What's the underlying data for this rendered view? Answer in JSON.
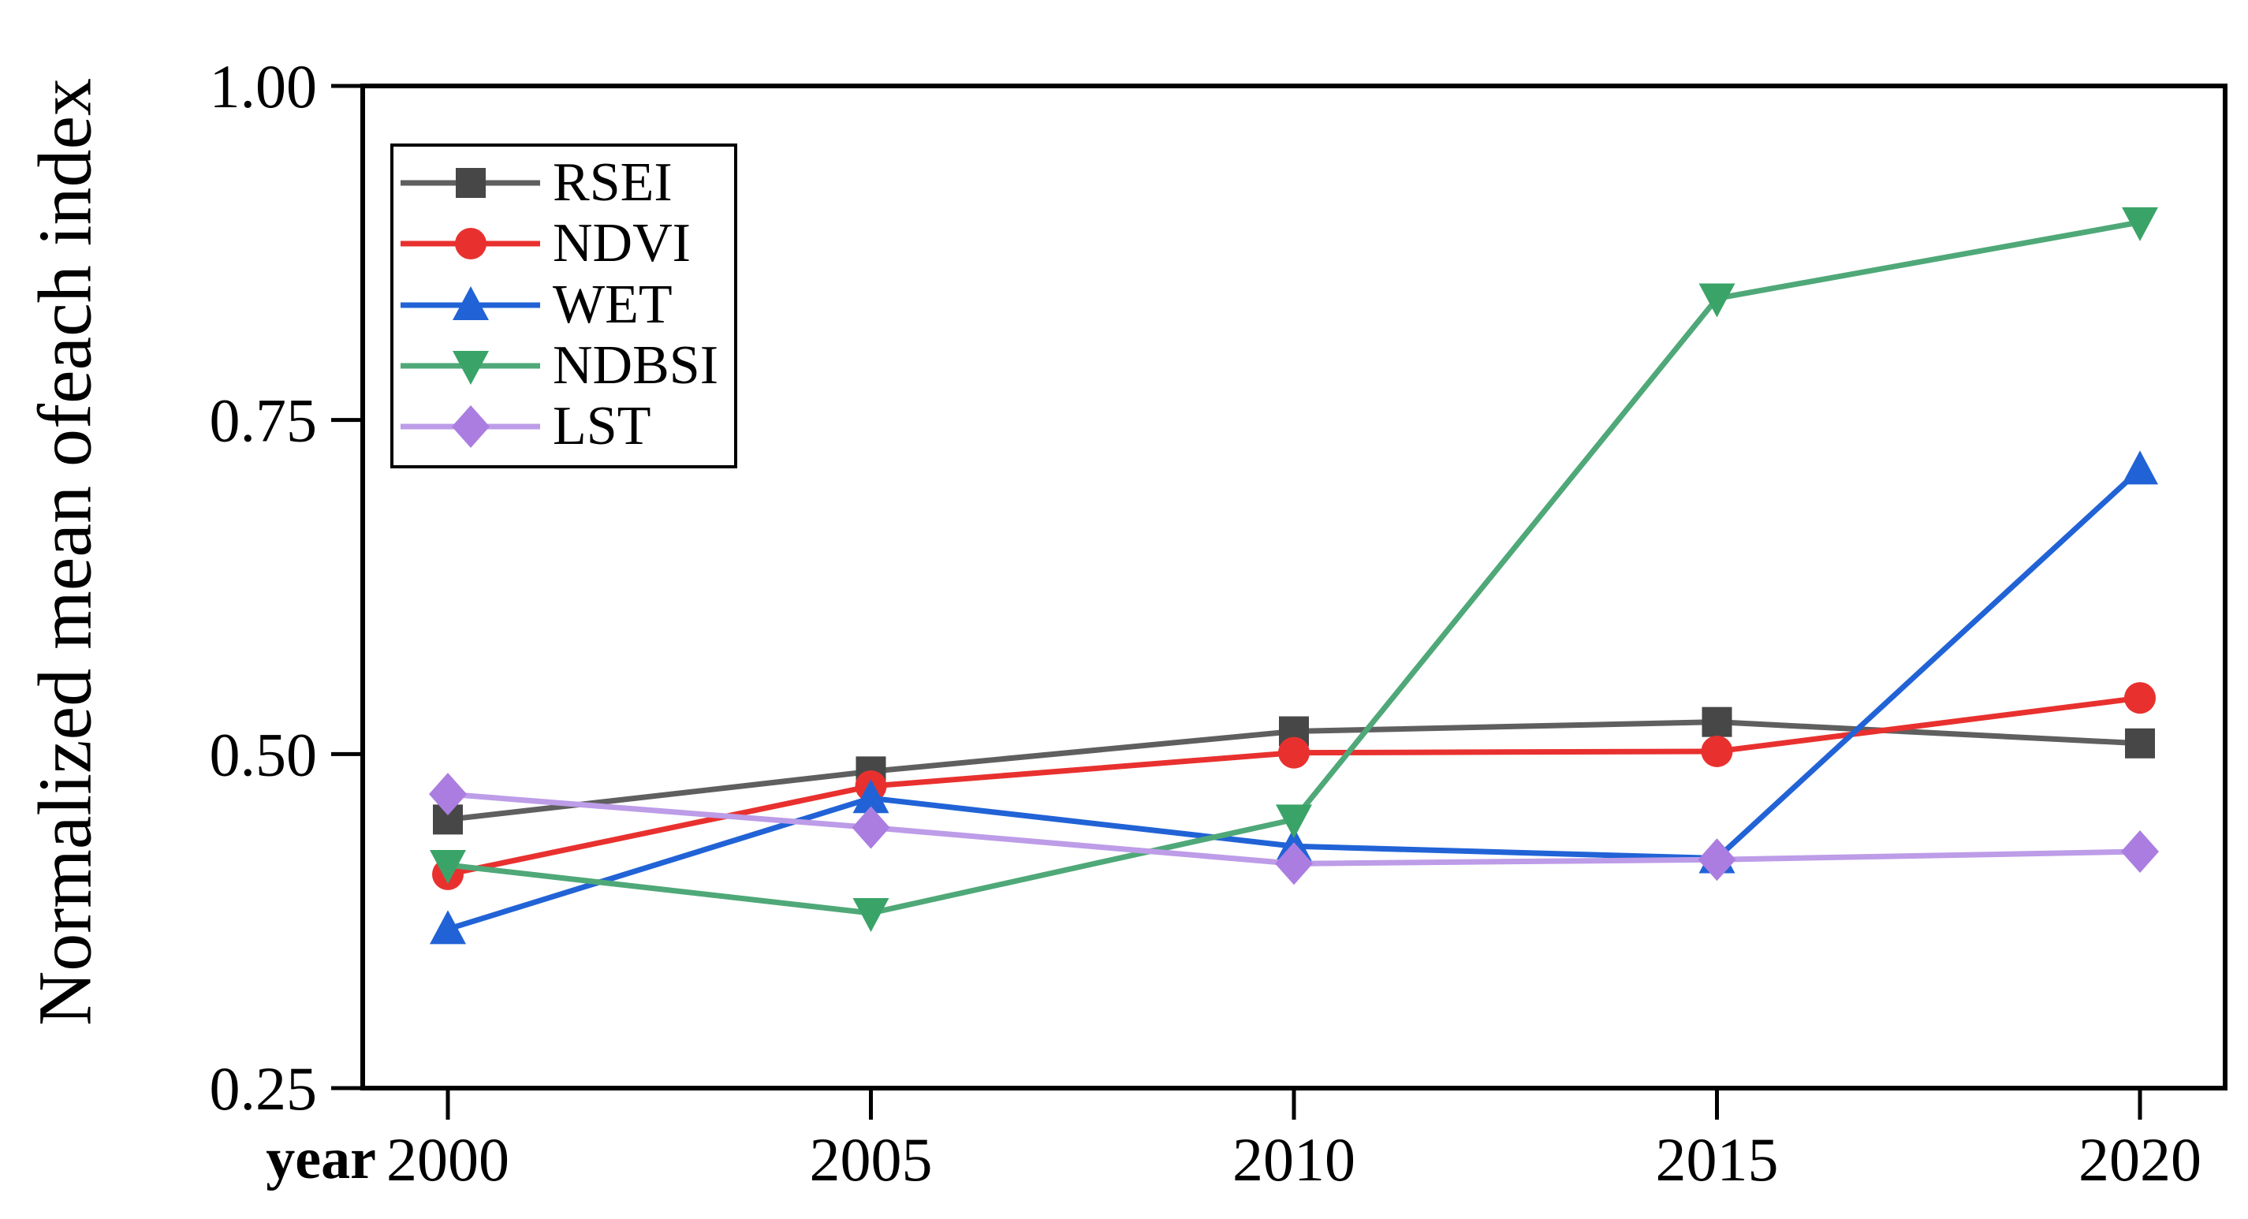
{
  "figure": {
    "background_color": "#ffffff",
    "text_color": "#000000"
  },
  "chart_data": {
    "type": "line",
    "title": "",
    "xlabel": "year",
    "ylabel": "Normalized mean ofeach index",
    "x": [
      "2000",
      "2005",
      "2010",
      "2015",
      "2020"
    ],
    "ylim": [
      0.25,
      1.0
    ],
    "yticks": [
      0.25,
      0.5,
      0.75,
      1.0
    ],
    "ytick_labels": [
      "0.25",
      "0.50",
      "0.75",
      "1.00"
    ],
    "grid": false,
    "legend_position": "upper-left-inside",
    "frame_color": "#000000",
    "axis_color": "#000000",
    "series": [
      {
        "name": "RSEI",
        "color": "#474747",
        "line_color": "#5f5f5f",
        "marker": "square",
        "values": [
          0.451,
          0.487,
          0.517,
          0.524,
          0.508
        ]
      },
      {
        "name": "NDVI",
        "color": "#e8312f",
        "line_color": "#e8312f",
        "marker": "circle",
        "values": [
          0.41,
          0.476,
          0.501,
          0.502,
          0.542
        ]
      },
      {
        "name": "WET",
        "color": "#2163d6",
        "line_color": "#2163d6",
        "marker": "triangle-up",
        "values": [
          0.369,
          0.467,
          0.431,
          0.422,
          0.713
        ]
      },
      {
        "name": "NDBSI",
        "color": "#3aa468",
        "line_color": "#4fa878",
        "marker": "triangle-down",
        "values": [
          0.417,
          0.381,
          0.451,
          0.841,
          0.898
        ]
      },
      {
        "name": "LST",
        "color": "#ab7de0",
        "line_color": "#bd9ce8",
        "marker": "diamond",
        "values": [
          0.47,
          0.445,
          0.418,
          0.421,
          0.427
        ]
      }
    ]
  }
}
